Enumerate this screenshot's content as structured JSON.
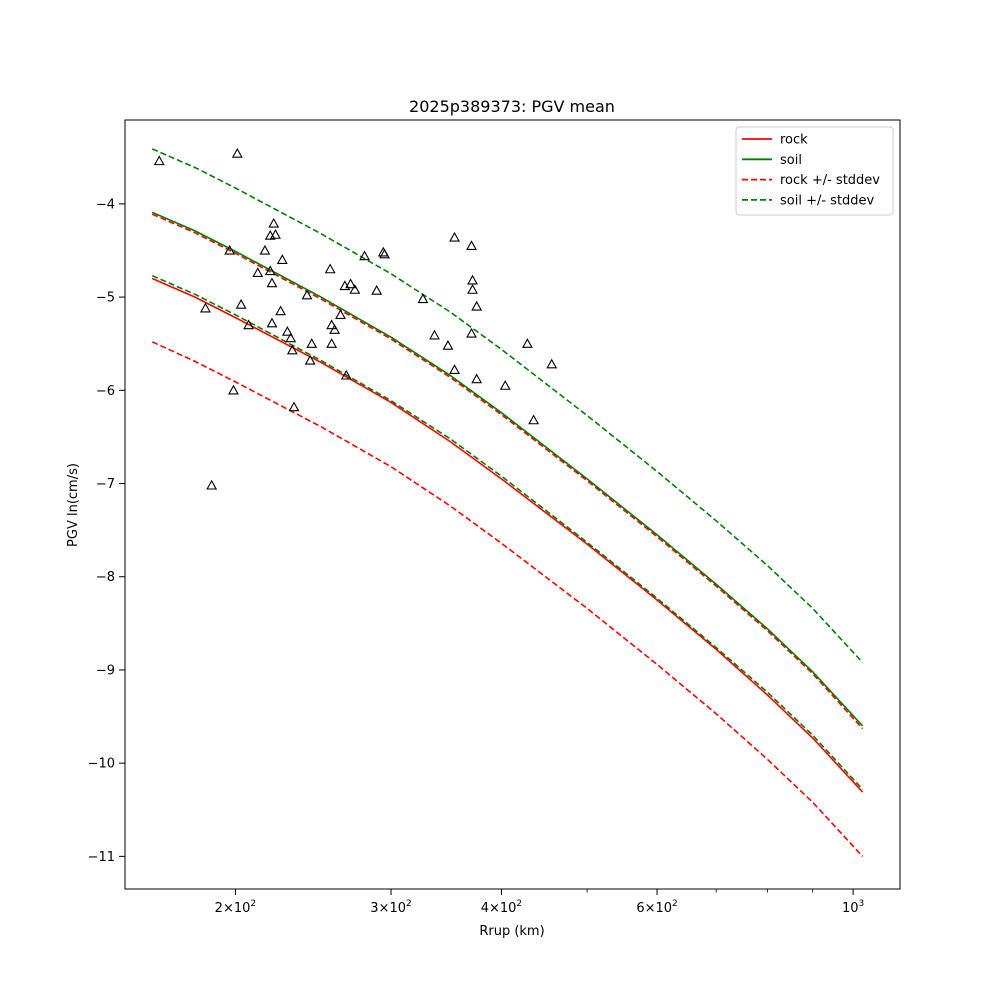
{
  "chart_data": {
    "type": "line",
    "title": "2025p389373: PGV mean",
    "xlabel": "Rrup (km)",
    "ylabel": "PGV ln(cm/s)",
    "xscale": "log",
    "xlim": [
      150,
      1130
    ],
    "ylim": [
      -11.35,
      -3.1
    ],
    "x_ticks": [
      {
        "value": 200,
        "base": "2",
        "exp": "2"
      },
      {
        "value": 300,
        "base": "3",
        "exp": "2"
      },
      {
        "value": 400,
        "base": "4",
        "exp": "2"
      },
      {
        "value": 600,
        "base": "6",
        "exp": "2"
      },
      {
        "value": 1000,
        "base": "",
        "exp": "3"
      }
    ],
    "x_minor_ticks": [
      500,
      700,
      800,
      900
    ],
    "y_ticks": [
      {
        "value": -4,
        "label": "−4"
      },
      {
        "value": -5,
        "label": "−5"
      },
      {
        "value": -6,
        "label": "−6"
      },
      {
        "value": -7,
        "label": "−7"
      },
      {
        "value": -8,
        "label": "−8"
      },
      {
        "value": -9,
        "label": "−9"
      },
      {
        "value": -10,
        "label": "−10"
      },
      {
        "value": -11,
        "label": "−11"
      }
    ],
    "grid": false,
    "legend_position": "top-right",
    "legend": [
      {
        "label": "rock",
        "color": "#ff0000",
        "dash": false
      },
      {
        "label": "soil",
        "color": "#008000",
        "dash": false
      },
      {
        "label": "rock +/- stddev",
        "color": "#ff0000",
        "dash": true
      },
      {
        "label": "soil +/- stddev",
        "color": "#008000",
        "dash": true
      }
    ],
    "curve_x": [
      161,
      180,
      200,
      250,
      300,
      350,
      400,
      500,
      600,
      700,
      800,
      900,
      1025
    ],
    "series": [
      {
        "group": "rock",
        "color": "#ff0000",
        "dash": false,
        "y": [
          -4.8,
          -5.0,
          -5.22,
          -5.7,
          -6.13,
          -6.55,
          -6.95,
          -7.65,
          -8.25,
          -8.78,
          -9.27,
          -9.73,
          -10.31
        ]
      },
      {
        "group": "rock",
        "color": "#ff0000",
        "dash": true,
        "y": [
          -4.11,
          -4.31,
          -4.53,
          -5.02,
          -5.45,
          -5.86,
          -6.26,
          -6.97,
          -7.57,
          -8.1,
          -8.58,
          -9.04,
          -9.63
        ]
      },
      {
        "group": "rock",
        "color": "#ff0000",
        "dash": true,
        "y": [
          -5.48,
          -5.69,
          -5.91,
          -6.39,
          -6.82,
          -7.24,
          -7.64,
          -8.34,
          -8.94,
          -9.47,
          -9.96,
          -10.42,
          -11.0
        ]
      },
      {
        "group": "soil",
        "color": "#008000",
        "dash": false,
        "y": [
          -4.09,
          -4.29,
          -4.51,
          -5.0,
          -5.43,
          -5.84,
          -6.24,
          -6.95,
          -7.55,
          -8.08,
          -8.56,
          -9.02,
          -9.6
        ]
      },
      {
        "group": "soil",
        "color": "#008000",
        "dash": true,
        "y": [
          -3.41,
          -3.61,
          -3.83,
          -4.32,
          -4.75,
          -5.16,
          -5.56,
          -6.27,
          -6.87,
          -7.4,
          -7.88,
          -8.34,
          -8.92
        ]
      },
      {
        "group": "soil",
        "color": "#008000",
        "dash": true,
        "y": [
          -4.77,
          -4.97,
          -5.19,
          -5.68,
          -6.11,
          -6.52,
          -6.92,
          -7.63,
          -8.23,
          -8.76,
          -9.24,
          -9.7,
          -10.28
        ]
      }
    ],
    "observations": {
      "marker": "triangle",
      "x": [
        164,
        185,
        197,
        201,
        199,
        203,
        207,
        212,
        216,
        219,
        221,
        222,
        219,
        220,
        220,
        226,
        225,
        229,
        231,
        232,
        233,
        241,
        244,
        243,
        256,
        257,
        257,
        259,
        263,
        267,
        266,
        270,
        273,
        280,
        289,
        294,
        295,
        326,
        336,
        348,
        354,
        354,
        370,
        370,
        371,
        371,
        375,
        375,
        404,
        428,
        435,
        456
      ],
      "y": [
        -3.54,
        -5.12,
        -4.5,
        -3.46,
        -6.0,
        -5.08,
        -5.3,
        -4.74,
        -4.5,
        -4.34,
        -4.21,
        -4.33,
        -4.72,
        -4.85,
        -5.28,
        -4.6,
        -5.15,
        -5.37,
        -5.44,
        -5.57,
        -6.18,
        -4.98,
        -5.5,
        -5.68,
        -4.7,
        -5.3,
        -5.5,
        -5.35,
        -5.19,
        -5.84,
        -4.88,
        -4.86,
        -4.92,
        -4.56,
        -4.93,
        -4.52,
        -4.54,
        -5.02,
        -5.41,
        -5.52,
        -4.36,
        -5.78,
        -5.39,
        -4.45,
        -4.82,
        -4.92,
        -5.1,
        -5.88,
        -5.95,
        -5.5,
        -6.32,
        -5.72
      ]
    },
    "outlier": {
      "x": 188,
      "y": -7.02
    }
  }
}
